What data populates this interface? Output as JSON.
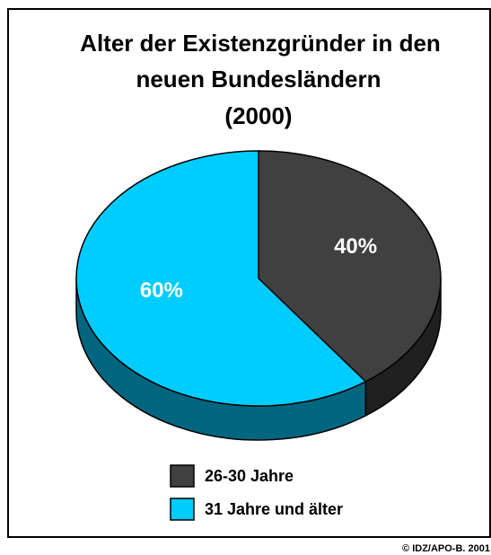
{
  "chart_data": {
    "type": "pie3d",
    "title": [
      "Alter der Existenzgründer in den",
      "neuen Bundesländern",
      "(2000)"
    ],
    "categories": [
      "26-30 Jahre",
      "31 Jahre und älter"
    ],
    "values": [
      40,
      60
    ],
    "value_labels": [
      "40%",
      "60%"
    ],
    "colors": [
      "#404040",
      "#00ccff"
    ],
    "source": "© IDZ/APO-B. 2001"
  }
}
